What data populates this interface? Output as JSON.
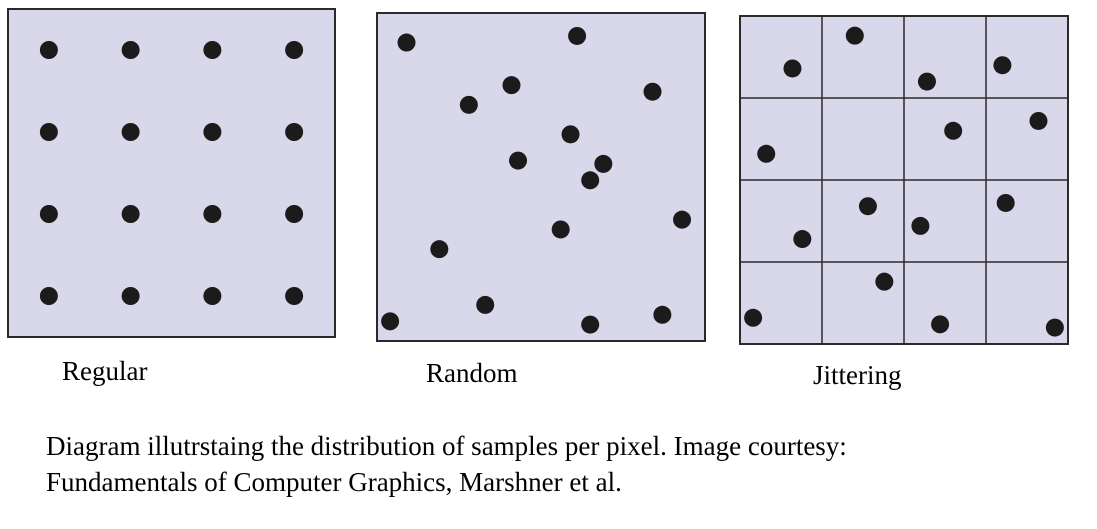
{
  "panels": [
    {
      "id": "regular",
      "label": "Regular",
      "fill_color": "#d9d8eb",
      "grid_lines": false,
      "samples": [
        [
          0.125,
          0.125
        ],
        [
          0.375,
          0.125
        ],
        [
          0.625,
          0.125
        ],
        [
          0.875,
          0.125
        ],
        [
          0.125,
          0.375
        ],
        [
          0.375,
          0.375
        ],
        [
          0.625,
          0.375
        ],
        [
          0.875,
          0.375
        ],
        [
          0.125,
          0.625
        ],
        [
          0.375,
          0.625
        ],
        [
          0.625,
          0.625
        ],
        [
          0.875,
          0.625
        ],
        [
          0.125,
          0.875
        ],
        [
          0.375,
          0.875
        ],
        [
          0.625,
          0.875
        ],
        [
          0.875,
          0.875
        ]
      ]
    },
    {
      "id": "random",
      "label": "Random",
      "fill_color": "#d9d8eb",
      "grid_lines": false,
      "samples": [
        [
          0.09,
          0.09
        ],
        [
          0.61,
          0.07
        ],
        [
          0.41,
          0.22
        ],
        [
          0.28,
          0.28
        ],
        [
          0.84,
          0.24
        ],
        [
          0.59,
          0.37
        ],
        [
          0.43,
          0.45
        ],
        [
          0.69,
          0.46
        ],
        [
          0.65,
          0.51
        ],
        [
          0.56,
          0.66
        ],
        [
          0.93,
          0.63
        ],
        [
          0.19,
          0.72
        ],
        [
          0.33,
          0.89
        ],
        [
          0.04,
          0.94
        ],
        [
          0.65,
          0.95
        ],
        [
          0.87,
          0.92
        ]
      ]
    },
    {
      "id": "jittering",
      "label": "Jittering",
      "fill_color": "#d9d8eb",
      "grid_lines": true,
      "grid_divisions": 4,
      "samples": [
        [
          0.16,
          0.16
        ],
        [
          0.35,
          0.06
        ],
        [
          0.57,
          0.2
        ],
        [
          0.8,
          0.15
        ],
        [
          0.08,
          0.42
        ],
        [
          0.65,
          0.35
        ],
        [
          0.91,
          0.32
        ],
        [
          0.19,
          0.68
        ],
        [
          0.39,
          0.58
        ],
        [
          0.55,
          0.64
        ],
        [
          0.81,
          0.57
        ],
        [
          0.44,
          0.81
        ],
        [
          0.04,
          0.92
        ],
        [
          0.61,
          0.94
        ],
        [
          0.96,
          0.95
        ]
      ]
    }
  ],
  "caption": {
    "line1": "Diagram illutrstaing the distribution of samples per pixel. Image courtesy:",
    "line2": "Fundamentals of Computer Graphics, Marshner et al."
  }
}
